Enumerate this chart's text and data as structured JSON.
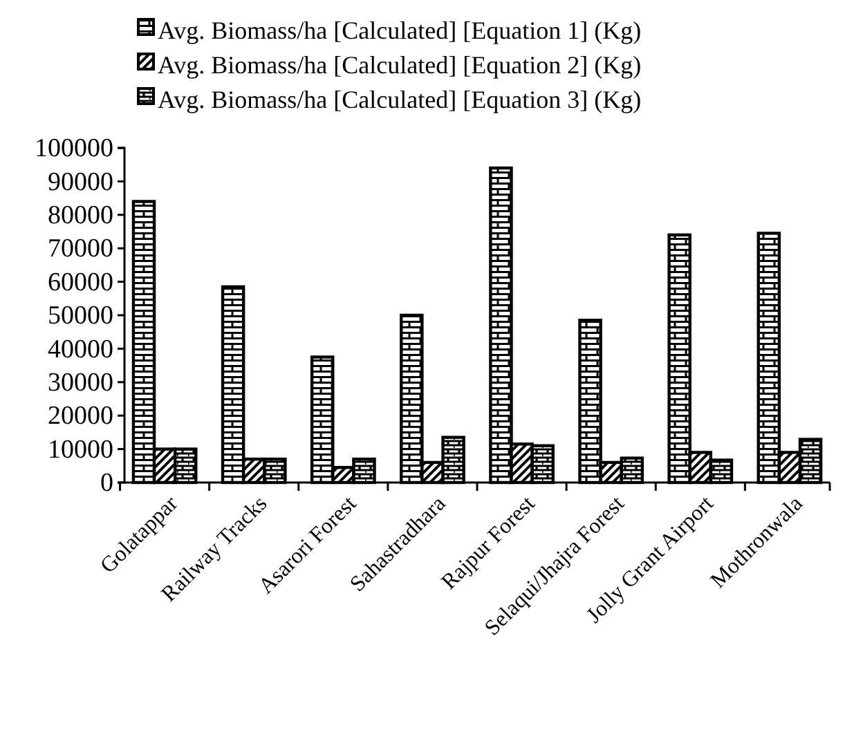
{
  "chart_data": {
    "type": "bar",
    "categories": [
      "Golatappar",
      "Railway Tracks",
      "Asarori Forest",
      "Sahastradhara",
      "Rajpur Forest",
      "Selaqui/Jhajra Forest",
      "Jolly Grant Airport",
      "Mothronwala"
    ],
    "series": [
      {
        "name": "Avg. Biomass/ha [Calculated] [Equation 1] (Kg)",
        "color": "#000000",
        "values": [
          84000,
          58500,
          37500,
          50000,
          94000,
          48500,
          74000,
          74500
        ]
      },
      {
        "name": "Avg. Biomass/ha [Calculated] [Equation 2] (Kg)",
        "color": "#000000",
        "values": [
          10000,
          7000,
          4500,
          6000,
          11500,
          6000,
          9000,
          9000
        ]
      },
      {
        "name": "Avg. Biomass/ha  [Calculated] [Equation 3] (Kg)",
        "color": "#000000",
        "values": [
          10000,
          7000,
          7000,
          13500,
          11000,
          7300,
          6700,
          12900
        ]
      }
    ],
    "ylim": [
      0,
      100000
    ],
    "yticks": [
      0,
      10000,
      20000,
      30000,
      40000,
      50000,
      60000,
      70000,
      80000,
      90000,
      100000
    ],
    "grid": false,
    "legend": "top"
  }
}
